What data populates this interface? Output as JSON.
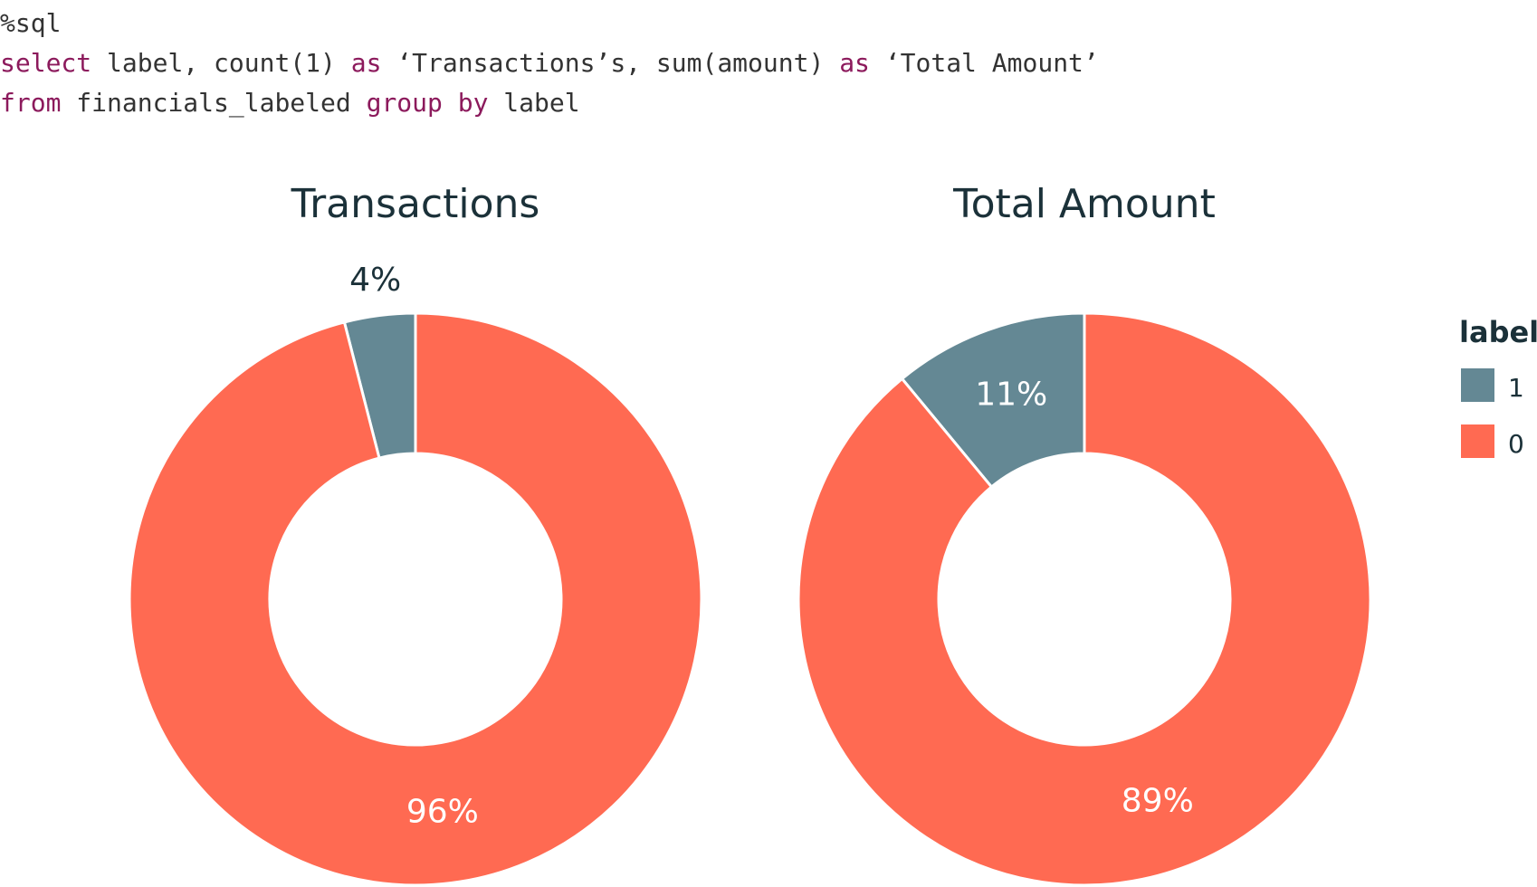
{
  "code": {
    "lines": [
      [
        {
          "text": "%sql",
          "kw": false
        }
      ],
      [
        {
          "text": "select",
          "kw": true
        },
        {
          "text": " label, count(1) ",
          "kw": false
        },
        {
          "text": "as",
          "kw": true
        },
        {
          "text": " ‘Transactions’s, sum(amount) ",
          "kw": false
        },
        {
          "text": "as",
          "kw": true
        },
        {
          "text": " ‘Total Amount’",
          "kw": false
        }
      ],
      [
        {
          "text": "from",
          "kw": true
        },
        {
          "text": " financials_labeled ",
          "kw": false
        },
        {
          "text": "group by",
          "kw": true
        },
        {
          "text": " label",
          "kw": false
        }
      ]
    ]
  },
  "colors": {
    "label_1": "#648894",
    "label_0": "#ff6a52",
    "title": "#1b3139",
    "outside_label": "#1b3139",
    "inside_label": "#ffffff",
    "keyword": "#8c1a5c"
  },
  "chart_data": [
    {
      "type": "pie",
      "title": "Transactions",
      "hole": true,
      "slices": [
        {
          "label": "1",
          "value": 4,
          "text": "4%",
          "text_position": "outside"
        },
        {
          "label": "0",
          "value": 96,
          "text": "96%",
          "text_position": "inside"
        }
      ]
    },
    {
      "type": "pie",
      "title": "Total Amount",
      "hole": true,
      "slices": [
        {
          "label": "1",
          "value": 11,
          "text": "11%",
          "text_position": "inside"
        },
        {
          "label": "0",
          "value": 89,
          "text": "89%",
          "text_position": "inside"
        }
      ]
    }
  ],
  "legend": {
    "title": "label",
    "placement": "right",
    "items": [
      {
        "label": "1",
        "color": "#648894"
      },
      {
        "label": "0",
        "color": "#ff6a52"
      }
    ]
  }
}
